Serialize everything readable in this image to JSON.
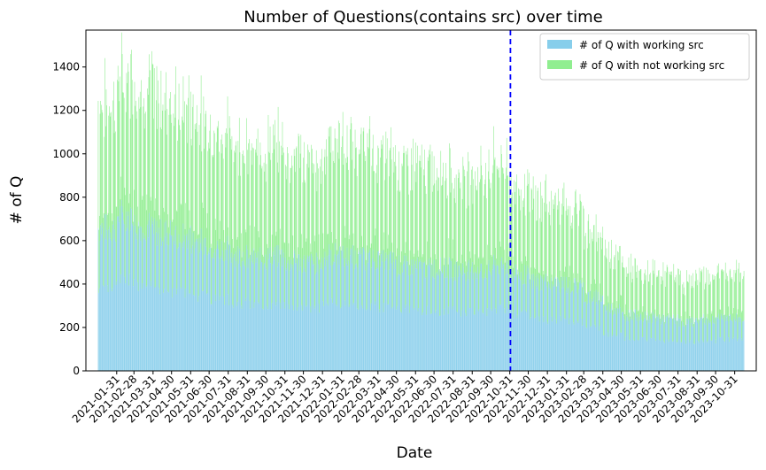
{
  "chart_data": {
    "type": "bar",
    "stacked": true,
    "title": "Number of Questions(contains src) over time",
    "xlabel": "Date",
    "ylabel": "# of Q",
    "ylim": [
      0,
      1570
    ],
    "yticks": [
      0,
      200,
      400,
      600,
      800,
      1000,
      1200,
      1400
    ],
    "x_start": "2021-01-01",
    "x_end": "2023-11-15",
    "xtick_labels": [
      "2021-01-31",
      "2021-02-28",
      "2021-03-31",
      "2021-04-30",
      "2021-05-31",
      "2021-06-30",
      "2021-07-31",
      "2021-08-31",
      "2021-09-30",
      "2021-10-31",
      "2021-11-30",
      "2021-12-31",
      "2022-01-31",
      "2022-02-28",
      "2022-03-31",
      "2022-04-30",
      "2022-05-31",
      "2022-06-30",
      "2022-07-31",
      "2022-08-31",
      "2022-09-30",
      "2022-10-31",
      "2022-11-30",
      "2022-12-31",
      "2023-01-31",
      "2023-02-28",
      "2023-03-31",
      "2023-04-30",
      "2023-05-31",
      "2023-06-30",
      "2023-07-31",
      "2023-08-31",
      "2023-09-30",
      "2023-10-31"
    ],
    "vline": {
      "x": "2022-11-01",
      "color": "#0000ff",
      "style": "dashed"
    },
    "legend_position": "top-right",
    "series": [
      {
        "name": "# of Q with working src",
        "color": "#87ceeb"
      },
      {
        "name": "# of Q with not working src",
        "color": "#90ee90"
      }
    ],
    "monthly_data": [
      {
        "month": "2021-01",
        "working": 640,
        "not_working": 560
      },
      {
        "month": "2021-02",
        "working": 700,
        "not_working": 620
      },
      {
        "month": "2021-03",
        "working": 650,
        "not_working": 620
      },
      {
        "month": "2021-04",
        "working": 620,
        "not_working": 600
      },
      {
        "month": "2021-05",
        "working": 600,
        "not_working": 580
      },
      {
        "month": "2021-06",
        "working": 580,
        "not_working": 560
      },
      {
        "month": "2021-07",
        "working": 550,
        "not_working": 520
      },
      {
        "month": "2021-08",
        "working": 520,
        "not_working": 500
      },
      {
        "month": "2021-09",
        "working": 500,
        "not_working": 480
      },
      {
        "month": "2021-10",
        "working": 510,
        "not_working": 490
      },
      {
        "month": "2021-11",
        "working": 490,
        "not_working": 470
      },
      {
        "month": "2021-12",
        "working": 480,
        "not_working": 460
      },
      {
        "month": "2022-01",
        "working": 520,
        "not_working": 500
      },
      {
        "month": "2022-02",
        "working": 510,
        "not_working": 490
      },
      {
        "month": "2022-03",
        "working": 500,
        "not_working": 480
      },
      {
        "month": "2022-04",
        "working": 490,
        "not_working": 470
      },
      {
        "month": "2022-05",
        "working": 470,
        "not_working": 450
      },
      {
        "month": "2022-06",
        "working": 460,
        "not_working": 440
      },
      {
        "month": "2022-07",
        "working": 460,
        "not_working": 430
      },
      {
        "month": "2022-08",
        "working": 450,
        "not_working": 420
      },
      {
        "month": "2022-09",
        "working": 450,
        "not_working": 430
      },
      {
        "month": "2022-10",
        "working": 470,
        "not_working": 460
      },
      {
        "month": "2022-11",
        "working": 430,
        "not_working": 390
      },
      {
        "month": "2022-12",
        "working": 400,
        "not_working": 360
      },
      {
        "month": "2023-01",
        "working": 390,
        "not_working": 350
      },
      {
        "month": "2023-02",
        "working": 380,
        "not_working": 340
      },
      {
        "month": "2023-03",
        "working": 330,
        "not_working": 290
      },
      {
        "month": "2023-04",
        "working": 280,
        "not_working": 250
      },
      {
        "month": "2023-05",
        "working": 250,
        "not_working": 220
      },
      {
        "month": "2023-06",
        "working": 240,
        "not_working": 200
      },
      {
        "month": "2023-07",
        "working": 230,
        "not_working": 190
      },
      {
        "month": "2023-08",
        "working": 220,
        "not_working": 180
      },
      {
        "month": "2023-09",
        "working": 230,
        "not_working": 190
      },
      {
        "month": "2023-10",
        "working": 240,
        "not_working": 200
      },
      {
        "month": "2023-11",
        "working": 240,
        "not_working": 210
      }
    ]
  }
}
